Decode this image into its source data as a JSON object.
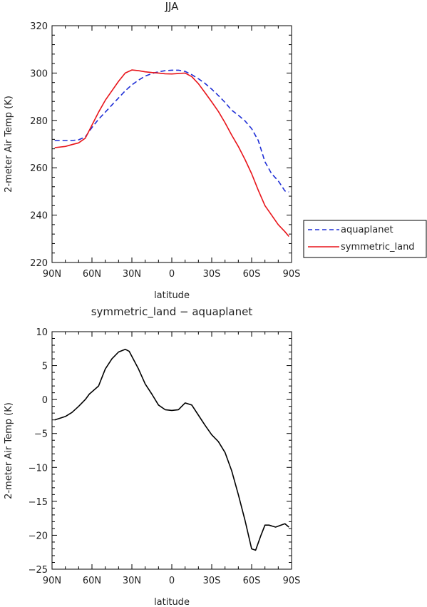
{
  "chart_data": [
    {
      "type": "line",
      "title": "JJA",
      "xlabel": "latitude",
      "ylabel": "2-meter Air Temp (K)",
      "x_tick_labels": [
        "90N",
        "60N",
        "30N",
        "0",
        "30S",
        "60S",
        "90S"
      ],
      "x_ticks": [
        90,
        60,
        30,
        0,
        -30,
        -60,
        -90
      ],
      "xlim": [
        90,
        -90
      ],
      "ylim": [
        220,
        320
      ],
      "y_ticks": [
        220,
        240,
        260,
        280,
        300,
        320
      ],
      "y_tick_labels": [
        "220",
        "240",
        "260",
        "280",
        "300",
        "320"
      ],
      "legend": {
        "placement": "right",
        "entries": [
          "aquaplanet",
          "symmetric_land"
        ]
      },
      "series": [
        {
          "name": "aquaplanet",
          "color": "#1f2fd6",
          "style": "dashed",
          "x": [
            88,
            80,
            75,
            70,
            65,
            60,
            55,
            50,
            45,
            40,
            35,
            30,
            25,
            20,
            15,
            10,
            5,
            0,
            -5,
            -10,
            -15,
            -20,
            -25,
            -30,
            -35,
            -40,
            -45,
            -50,
            -55,
            -60,
            -65,
            -70,
            -75,
            -80,
            -85,
            -88
          ],
          "y": [
            271.5,
            271.5,
            271.5,
            271.8,
            273,
            277,
            280.5,
            283.5,
            286.5,
            289.5,
            292.5,
            295,
            297,
            298.7,
            299.8,
            300.5,
            301,
            301.2,
            301.2,
            300.7,
            299.3,
            297.6,
            295.6,
            293.2,
            290.5,
            287.6,
            284.3,
            282.2,
            279.8,
            276.5,
            271.5,
            262.5,
            257.5,
            254.5,
            250.2,
            249.8
          ]
        },
        {
          "name": "symmetric_land",
          "color": "#e8141a",
          "style": "solid",
          "x": [
            88,
            80,
            75,
            70,
            65,
            60,
            55,
            50,
            45,
            40,
            35,
            30,
            25,
            20,
            15,
            10,
            5,
            0,
            -5,
            -10,
            -15,
            -20,
            -25,
            -30,
            -35,
            -40,
            -45,
            -50,
            -55,
            -60,
            -65,
            -70,
            -75,
            -80,
            -85,
            -88
          ],
          "y": [
            268.5,
            269,
            269.8,
            270.5,
            272.5,
            278,
            283.5,
            288.5,
            292.5,
            296.5,
            300,
            301.3,
            301,
            300.5,
            300.2,
            300,
            299.7,
            299.6,
            299.8,
            300,
            298.5,
            295.5,
            291.7,
            287.8,
            283.8,
            279,
            273.8,
            269,
            263.5,
            257.5,
            250.5,
            244,
            240,
            236,
            233,
            231
          ]
        }
      ]
    },
    {
      "type": "line",
      "title": "symmetric_land − aquaplanet",
      "xlabel": "latitude",
      "ylabel": "2-meter Air Temp (K)",
      "x_tick_labels": [
        "90N",
        "60N",
        "30N",
        "0",
        "30S",
        "60S",
        "90S"
      ],
      "x_ticks": [
        90,
        60,
        30,
        0,
        -30,
        -60,
        -90
      ],
      "xlim": [
        90,
        -90
      ],
      "ylim": [
        -25,
        10
      ],
      "y_ticks": [
        -25,
        -20,
        -15,
        -10,
        -5,
        0,
        5,
        10
      ],
      "y_tick_labels": [
        "−25",
        "−20",
        "−15",
        "−10",
        "−5",
        "0",
        "5",
        "10"
      ],
      "series": [
        {
          "color": "#000000",
          "style": "solid",
          "x": [
            88,
            80,
            75,
            70,
            65,
            62,
            55,
            50,
            45,
            40,
            35,
            32,
            25,
            20,
            15,
            10,
            5,
            0,
            -5,
            -10,
            -15,
            -20,
            -25,
            -30,
            -35,
            -40,
            -45,
            -50,
            -55,
            -60,
            -63,
            -67,
            -70,
            -73,
            -78,
            -82,
            -85,
            -88
          ],
          "y": [
            -3,
            -2.5,
            -1.9,
            -1,
            0,
            0.8,
            2,
            4.5,
            6,
            7,
            7.4,
            7.1,
            4.5,
            2.3,
            0.8,
            -0.8,
            -1.5,
            -1.6,
            -1.5,
            -0.5,
            -0.8,
            -2.3,
            -3.8,
            -5.2,
            -6.2,
            -7.8,
            -10.5,
            -14,
            -17.8,
            -22,
            -22.2,
            -20,
            -18.5,
            -18.5,
            -18.8,
            -18.5,
            -18.3,
            -18.8
          ]
        }
      ]
    }
  ]
}
